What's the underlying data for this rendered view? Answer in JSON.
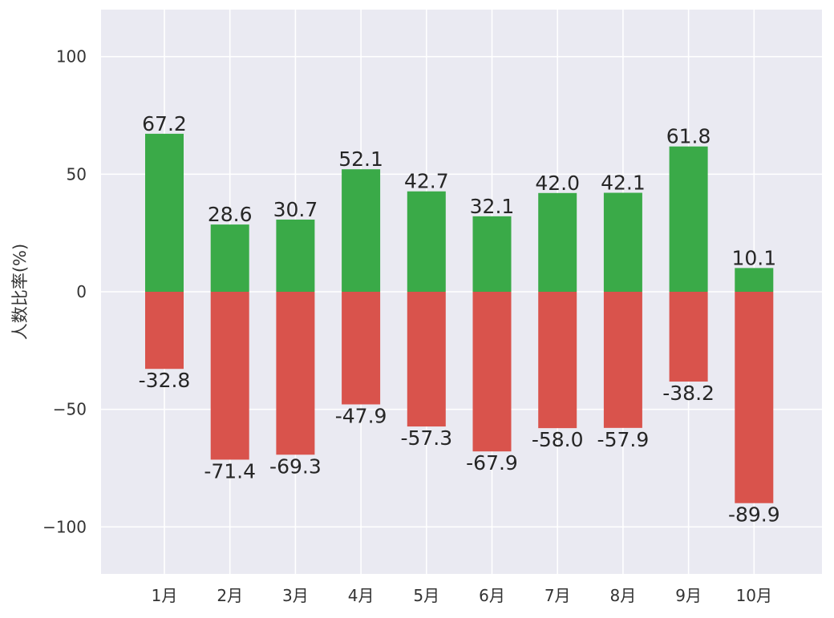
{
  "chart_data": {
    "type": "bar",
    "title": "",
    "xlabel": "",
    "ylabel": "人数比率(%)",
    "categories": [
      "1月",
      "2月",
      "3月",
      "4月",
      "5月",
      "6月",
      "7月",
      "8月",
      "9月",
      "10月"
    ],
    "series": [
      {
        "values": [
          67.2,
          28.6,
          30.7,
          52.1,
          42.7,
          32.1,
          42.0,
          42.1,
          61.8,
          10.1
        ],
        "color": "#3aaa48"
      },
      {
        "values": [
          -32.8,
          -71.4,
          -69.3,
          -47.9,
          -57.3,
          -67.9,
          -58.0,
          -57.9,
          -38.2,
          -89.9
        ],
        "color": "#d9534c"
      }
    ],
    "ylim": [
      -120,
      120
    ],
    "yticks": [
      100,
      50,
      0,
      -50,
      -100
    ],
    "ytick_labels": [
      "100",
      "50",
      "0",
      "−50",
      "−100"
    ],
    "grid": true,
    "background": "#eaeaf2",
    "grid_color": "#ffffff"
  }
}
